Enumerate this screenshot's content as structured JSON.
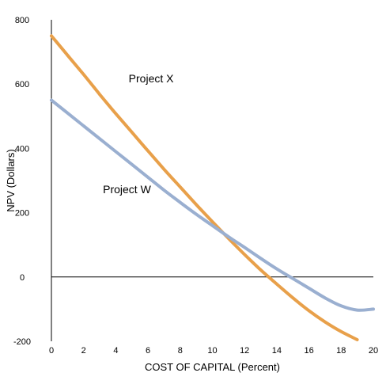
{
  "chart_data": {
    "type": "line",
    "xlabel": "COST OF CAPITAL (Percent)",
    "ylabel": "NPV (Dollars)",
    "xlim": [
      0,
      20
    ],
    "ylim": [
      -200,
      800
    ],
    "x_ticks": [
      0,
      2,
      4,
      6,
      8,
      10,
      12,
      14,
      16,
      18,
      20
    ],
    "y_ticks": [
      -200,
      0,
      200,
      400,
      600,
      800
    ],
    "grid": false,
    "legend": "none",
    "zero_line": true,
    "series": [
      {
        "name": "Project X",
        "color": "#E8A04A",
        "label_at": {
          "x": 4.8,
          "y": 605
        },
        "points": [
          [
            0,
            750
          ],
          [
            1,
            690
          ],
          [
            2,
            630
          ],
          [
            3,
            568
          ],
          [
            4,
            508
          ],
          [
            5,
            450
          ],
          [
            6,
            392
          ],
          [
            7,
            335
          ],
          [
            8,
            280
          ],
          [
            9,
            225
          ],
          [
            10,
            172
          ],
          [
            11,
            120
          ],
          [
            12,
            70
          ],
          [
            13,
            22
          ],
          [
            14,
            -22
          ],
          [
            15,
            -65
          ],
          [
            16,
            -105
          ],
          [
            17,
            -140
          ],
          [
            18,
            -170
          ],
          [
            19,
            -195
          ]
        ]
      },
      {
        "name": "Project W",
        "color": "#9AAFD0",
        "label_at": {
          "x": 3.2,
          "y": 260
        },
        "points": [
          [
            0,
            550
          ],
          [
            1,
            510
          ],
          [
            2,
            470
          ],
          [
            3,
            430
          ],
          [
            4,
            390
          ],
          [
            5,
            350
          ],
          [
            6,
            310
          ],
          [
            7,
            270
          ],
          [
            8,
            232
          ],
          [
            9,
            195
          ],
          [
            10,
            160
          ],
          [
            11,
            125
          ],
          [
            12,
            92
          ],
          [
            13,
            58
          ],
          [
            14,
            25
          ],
          [
            15,
            -5
          ],
          [
            16,
            -35
          ],
          [
            17,
            -65
          ],
          [
            18,
            -90
          ],
          [
            19,
            -103
          ],
          [
            20,
            -100
          ]
        ]
      }
    ]
  }
}
